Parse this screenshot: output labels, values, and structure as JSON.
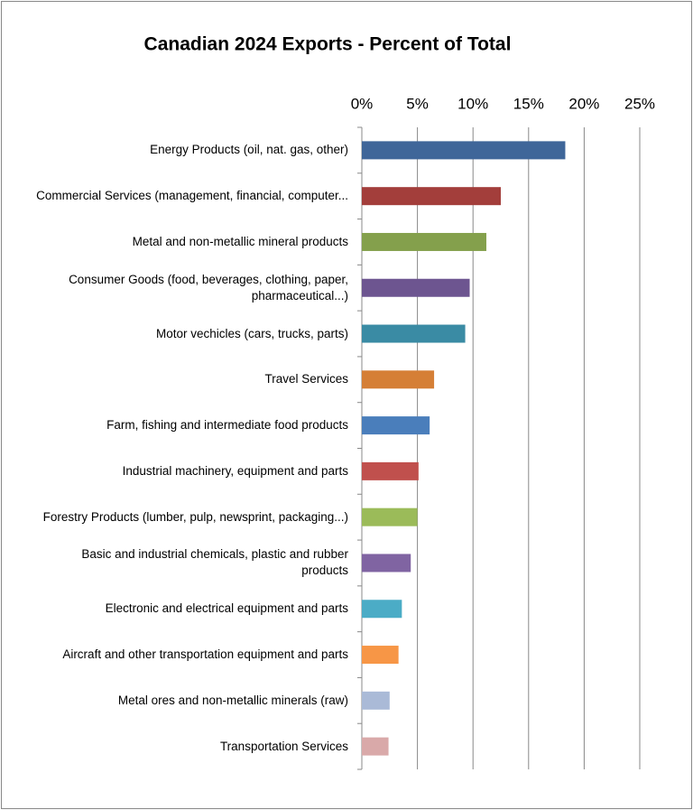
{
  "chart_data": {
    "type": "hbar",
    "title": "Canadian 2024 Exports - Percent of Total",
    "categories": [
      "Energy Products (oil, nat. gas, other)",
      "Commercial Services (management, financial, computer...",
      "Metal and non-metallic mineral products",
      "Consumer Goods (food, beverages, clothing, paper, pharmaceutical...)",
      "Motor vechicles (cars, trucks, parts)",
      "Travel Services",
      "Farm, fishing and intermediate food products",
      "Industrial machinery, equipment and parts",
      "Forestry Products (lumber, pulp, newsprint, packaging...)",
      "Basic and industrial chemicals, plastic and rubber products",
      "Electronic and electrical equipment and parts",
      "Aircraft and other transportation equipment and parts",
      "Metal ores and non-metallic minerals (raw)",
      "Transportation Services"
    ],
    "values": [
      18.3,
      12.5,
      11.2,
      9.7,
      9.3,
      6.5,
      6.1,
      5.1,
      5.0,
      4.4,
      3.6,
      3.3,
      2.5,
      2.4
    ],
    "colors": [
      "#3f6699",
      "#a33e3b",
      "#84a04c",
      "#6d5590",
      "#3a8ba4",
      "#d57f36",
      "#4a7ebb",
      "#c0504d",
      "#9bbb59",
      "#8064a2",
      "#4bacc6",
      "#f79646",
      "#aabad7",
      "#d9a9a9"
    ],
    "xlim": [
      0,
      25
    ],
    "xticks": [
      {
        "value": 0,
        "label": "0%"
      },
      {
        "value": 5,
        "label": "5%"
      },
      {
        "value": 10,
        "label": "10%"
      },
      {
        "value": 15,
        "label": "15%"
      },
      {
        "value": 20,
        "label": "20%"
      },
      {
        "value": 25,
        "label": "25%"
      }
    ],
    "grid": true
  }
}
